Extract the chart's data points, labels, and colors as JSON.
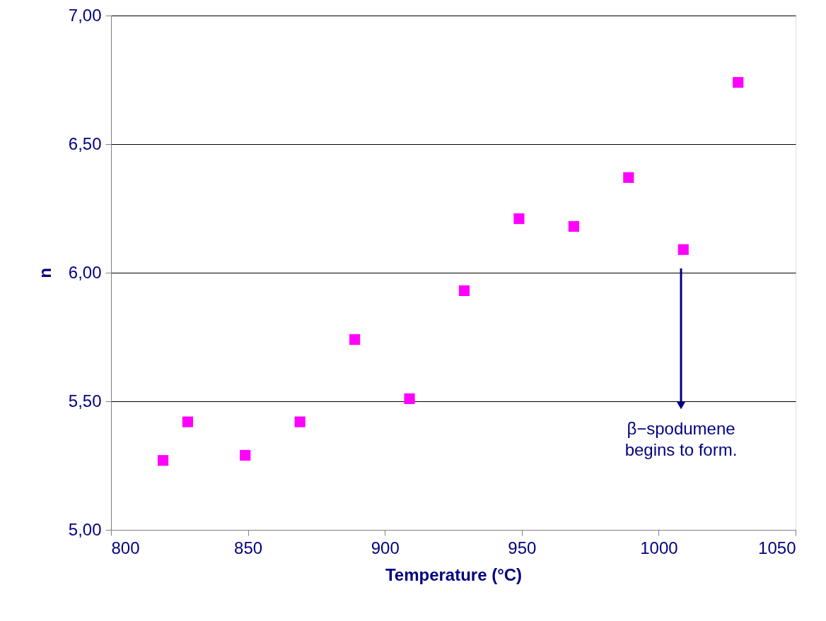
{
  "chart_data": {
    "type": "scatter",
    "xlabel": "Temperature (°C)",
    "ylabel": "n",
    "x": [
      819,
      828,
      849,
      869,
      889,
      909,
      929,
      949,
      969,
      989,
      1009,
      1029
    ],
    "series": [
      {
        "color": "#ff00ff",
        "values": [
          5.27,
          5.42,
          5.29,
          5.42,
          5.74,
          5.51,
          5.93,
          6.21,
          6.18,
          6.37,
          6.09,
          6.74
        ]
      }
    ],
    "xlim": [
      800,
      1050
    ],
    "xticks": [
      800,
      850,
      900,
      950,
      1000,
      1050
    ],
    "ylim": [
      5,
      7
    ],
    "yticks": [
      {
        "value": 5,
        "label": "5,00"
      },
      {
        "value": 5.5,
        "label": "5,50"
      },
      {
        "value": 6,
        "label": "6,00"
      },
      {
        "value": 6.5,
        "label": "6,50"
      },
      {
        "value": 7,
        "label": "7,00"
      }
    ],
    "grid": "y",
    "marker": "square",
    "annotations": [
      "β−spodumene\nbegins to form."
    ]
  }
}
